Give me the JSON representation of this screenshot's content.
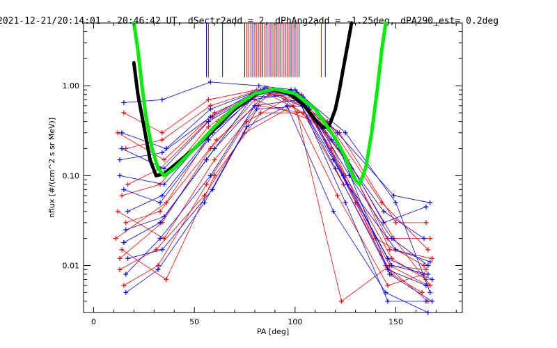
{
  "chart_data": {
    "type": "line",
    "title": "2021-12-21/20:14:01 - 20:46:42 UT, dSectr2add = 2, dPhAng2add = -1.25deg, dPA290_est=   0.2deg",
    "xlabel": "PA [deg]",
    "ylabel": "nflux [#/(cm^2 s sr MeV)]",
    "xlim": [
      -5,
      183
    ],
    "ylim": [
      0.003,
      5
    ],
    "yscale": "log",
    "grid": false,
    "x_ticks": [
      {
        "value": 0,
        "label": "0"
      },
      {
        "value": 50,
        "label": "50"
      },
      {
        "value": 100,
        "label": "100"
      },
      {
        "value": 150,
        "label": "150"
      }
    ],
    "y_ticks": [
      {
        "value": 0.01,
        "label": "0.01"
      },
      {
        "value": 0.1,
        "label": "0.10"
      },
      {
        "value": 1.0,
        "label": "1.00"
      }
    ],
    "colors": {
      "red": "#ff0000",
      "blue": "#0000ff",
      "black": "#000000",
      "green": "#00ee00"
    },
    "series": [
      {
        "color": "red",
        "points": [
          [
            12,
            0.3
          ],
          [
            35,
            0.15
          ],
          [
            60,
            0.5
          ],
          [
            85,
            0.9
          ],
          [
            105,
            0.6
          ],
          [
            125,
            0.1
          ],
          [
            148,
            0.012
          ],
          [
            165,
            0.007
          ]
        ]
      },
      {
        "color": "red",
        "points": [
          [
            13,
            0.012
          ],
          [
            34,
            0.03
          ],
          [
            58,
            0.2
          ],
          [
            80,
            0.7
          ],
          [
            110,
            0.4
          ],
          [
            130,
            0.05
          ],
          [
            147,
            0.01
          ],
          [
            166,
            0.006
          ]
        ]
      },
      {
        "color": "red",
        "points": [
          [
            14,
            0.06
          ],
          [
            33,
            0.08
          ],
          [
            57,
            0.35
          ],
          [
            78,
            0.8
          ],
          [
            100,
            0.9
          ],
          [
            120,
            0.25
          ],
          [
            146,
            0.02
          ],
          [
            167,
            0.02
          ]
        ]
      },
      {
        "color": "red",
        "points": [
          [
            15,
            0.006
          ],
          [
            32,
            0.01
          ],
          [
            56,
            0.08
          ],
          [
            76,
            0.4
          ],
          [
            95,
            0.7
          ],
          [
            115,
            0.3
          ],
          [
            140,
            0.02
          ],
          [
            164,
            0.01
          ]
        ]
      },
      {
        "color": "red",
        "points": [
          [
            11,
            0.02
          ],
          [
            36,
            0.05
          ],
          [
            62,
            0.4
          ],
          [
            84,
            0.85
          ],
          [
            102,
            0.7
          ],
          [
            118,
            0.2
          ],
          [
            145,
            0.01
          ],
          [
            166,
            0.004
          ]
        ]
      },
      {
        "color": "red",
        "points": [
          [
            16,
            0.2
          ],
          [
            34,
            0.25
          ],
          [
            58,
            0.6
          ],
          [
            79,
            0.85
          ],
          [
            98,
            0.8
          ],
          [
            122,
            0.3
          ],
          [
            150,
            0.03
          ],
          [
            165,
            0.03
          ]
        ]
      },
      {
        "color": "red",
        "points": [
          [
            12,
            0.04
          ],
          [
            35,
            0.02
          ],
          [
            60,
            0.15
          ],
          [
            82,
            0.6
          ],
          [
            104,
            0.5
          ],
          [
            124,
            0.08
          ],
          [
            148,
            0.008
          ],
          [
            163,
            0.005
          ]
        ]
      },
      {
        "color": "red",
        "points": [
          [
            17,
            0.08
          ],
          [
            33,
            0.12
          ],
          [
            59,
            0.45
          ],
          [
            86,
            0.95
          ],
          [
            106,
            0.55
          ],
          [
            128,
            0.12
          ],
          [
            147,
            0.015
          ],
          [
            168,
            0.012
          ]
        ]
      },
      {
        "color": "red",
        "points": [
          [
            13,
            0.009
          ],
          [
            31,
            0.015
          ],
          [
            55,
            0.06
          ],
          [
            75,
            0.3
          ],
          [
            99,
            0.6
          ],
          [
            121,
            0.06
          ],
          [
            146,
            0.006
          ],
          [
            164,
            0.008
          ]
        ]
      },
      {
        "color": "red",
        "points": [
          [
            15,
            0.5
          ],
          [
            34,
            0.3
          ],
          [
            57,
            0.7
          ],
          [
            81,
            0.9
          ],
          [
            103,
            0.8
          ],
          [
            116,
            0.4
          ],
          [
            143,
            0.05
          ],
          [
            166,
            0.015
          ]
        ]
      },
      {
        "color": "red",
        "points": [
          [
            14,
            0.015
          ],
          [
            36,
            0.007
          ],
          [
            60,
            0.1
          ],
          [
            83,
            0.5
          ],
          [
            101,
            0.5
          ],
          [
            123,
            0.004
          ],
          [
            147,
            0.01
          ],
          [
            165,
            0.009
          ]
        ]
      },
      {
        "color": "red",
        "points": [
          [
            16,
            0.03
          ],
          [
            33,
            0.04
          ],
          [
            61,
            0.25
          ],
          [
            87,
            0.8
          ],
          [
            108,
            0.45
          ],
          [
            126,
            0.15
          ],
          [
            149,
            0.02
          ],
          [
            167,
            0.006
          ]
        ]
      },
      {
        "color": "blue",
        "points": [
          [
            15,
            0.65
          ],
          [
            34,
            0.7
          ],
          [
            58,
            1.1
          ],
          [
            82,
            1.0
          ],
          [
            100,
            0.9
          ],
          [
            125,
            0.3
          ],
          [
            150,
            0.05
          ],
          [
            167,
            0.005
          ]
        ]
      },
      {
        "color": "blue",
        "points": [
          [
            16,
            0.008
          ],
          [
            33,
            0.02
          ],
          [
            58,
            0.1
          ],
          [
            80,
            0.6
          ],
          [
            102,
            0.7
          ],
          [
            125,
            0.05
          ],
          [
            146,
            0.004
          ],
          [
            165,
            0.004
          ]
        ]
      },
      {
        "color": "blue",
        "points": [
          [
            14,
            0.2
          ],
          [
            35,
            0.12
          ],
          [
            57,
            0.4
          ],
          [
            82,
            0.85
          ],
          [
            99,
            0.85
          ],
          [
            119,
            0.15
          ],
          [
            146,
            0.012
          ],
          [
            168,
            0.007
          ]
        ]
      },
      {
        "color": "blue",
        "points": [
          [
            17,
            0.04
          ],
          [
            34,
            0.06
          ],
          [
            59,
            0.3
          ],
          [
            84,
            0.9
          ],
          [
            104,
            0.75
          ],
          [
            124,
            0.1
          ],
          [
            148,
            0.01
          ],
          [
            166,
            0.008
          ]
        ]
      },
      {
        "color": "blue",
        "points": [
          [
            15,
            0.018
          ],
          [
            33,
            0.03
          ],
          [
            56,
            0.15
          ],
          [
            78,
            0.7
          ],
          [
            97,
            0.8
          ],
          [
            117,
            0.35
          ],
          [
            144,
            0.03
          ],
          [
            165,
            0.045
          ]
        ]
      },
      {
        "color": "blue",
        "points": [
          [
            13,
            0.1
          ],
          [
            35,
            0.08
          ],
          [
            60,
            0.35
          ],
          [
            85,
            0.95
          ],
          [
            103,
            0.7
          ],
          [
            122,
            0.2
          ],
          [
            147,
            0.008
          ],
          [
            168,
            0.004
          ]
        ]
      },
      {
        "color": "blue",
        "points": [
          [
            16,
            0.005
          ],
          [
            32,
            0.009
          ],
          [
            55,
            0.05
          ],
          [
            76,
            0.35
          ],
          [
            96,
            0.6
          ],
          [
            119,
            0.04
          ],
          [
            145,
            0.005
          ],
          [
            166,
            0.003
          ]
        ]
      },
      {
        "color": "blue",
        "points": [
          [
            14,
            0.3
          ],
          [
            36,
            0.2
          ],
          [
            58,
            0.55
          ],
          [
            83,
            0.9
          ],
          [
            101,
            0.85
          ],
          [
            121,
            0.3
          ],
          [
            149,
            0.06
          ],
          [
            167,
            0.05
          ]
        ]
      },
      {
        "color": "blue",
        "points": [
          [
            17,
            0.012
          ],
          [
            34,
            0.015
          ],
          [
            59,
            0.07
          ],
          [
            81,
            0.55
          ],
          [
            105,
            0.6
          ],
          [
            126,
            0.08
          ],
          [
            150,
            0.015
          ],
          [
            167,
            0.011
          ]
        ]
      },
      {
        "color": "blue",
        "points": [
          [
            15,
            0.07
          ],
          [
            33,
            0.05
          ],
          [
            57,
            0.25
          ],
          [
            79,
            0.75
          ],
          [
            100,
            0.8
          ],
          [
            120,
            0.12
          ],
          [
            146,
            0.009
          ],
          [
            165,
            0.006
          ]
        ]
      },
      {
        "color": "blue",
        "points": [
          [
            16,
            0.025
          ],
          [
            35,
            0.035
          ],
          [
            60,
            0.2
          ],
          [
            86,
            0.85
          ],
          [
            107,
            0.55
          ],
          [
            127,
            0.1
          ],
          [
            148,
            0.02
          ],
          [
            166,
            0.01
          ]
        ]
      },
      {
        "color": "blue",
        "points": [
          [
            13,
            0.15
          ],
          [
            34,
            0.18
          ],
          [
            58,
            0.45
          ],
          [
            80,
            0.85
          ],
          [
            98,
            0.9
          ],
          [
            118,
            0.25
          ],
          [
            144,
            0.04
          ],
          [
            164,
            0.02
          ]
        ]
      }
    ],
    "vertical_markers": {
      "red": [
        57,
        76,
        77,
        78,
        80,
        81,
        82,
        83,
        85,
        87,
        89,
        90,
        92,
        94,
        96,
        97,
        99,
        101,
        113
      ],
      "blue": [
        56,
        64,
        75,
        79,
        84,
        86,
        88,
        91,
        93,
        95,
        98,
        100,
        102,
        115
      ]
    },
    "fits": [
      {
        "color": "black",
        "points": [
          [
            20,
            1.8
          ],
          [
            22,
            0.8
          ],
          [
            25,
            0.35
          ],
          [
            28,
            0.15
          ],
          [
            31,
            0.1
          ],
          [
            35,
            0.105
          ],
          [
            40,
            0.13
          ],
          [
            50,
            0.2
          ],
          [
            60,
            0.33
          ],
          [
            70,
            0.55
          ],
          [
            80,
            0.8
          ],
          [
            88,
            0.9
          ],
          [
            96,
            0.85
          ],
          [
            104,
            0.62
          ],
          [
            110,
            0.42
          ],
          [
            114,
            0.34
          ],
          [
            117,
            0.36
          ],
          [
            120,
            0.55
          ],
          [
            122,
            0.9
          ],
          [
            124,
            1.6
          ],
          [
            126,
            2.8
          ],
          [
            128,
            5.0
          ]
        ]
      },
      {
        "color": "green",
        "points": [
          [
            20,
            5.0
          ],
          [
            22,
            2.5
          ],
          [
            24,
            1.0
          ],
          [
            26,
            0.45
          ],
          [
            29,
            0.2
          ],
          [
            32,
            0.12
          ],
          [
            35,
            0.1
          ],
          [
            40,
            0.12
          ],
          [
            50,
            0.2
          ],
          [
            60,
            0.35
          ],
          [
            70,
            0.58
          ],
          [
            80,
            0.82
          ],
          [
            90,
            0.92
          ],
          [
            100,
            0.82
          ],
          [
            110,
            0.55
          ],
          [
            120,
            0.26
          ],
          [
            125,
            0.16
          ],
          [
            129,
            0.095
          ],
          [
            132,
            0.08
          ],
          [
            135,
            0.12
          ],
          [
            138,
            0.3
          ],
          [
            141,
            1.0
          ],
          [
            143,
            2.5
          ],
          [
            145,
            5.0
          ]
        ]
      }
    ]
  }
}
